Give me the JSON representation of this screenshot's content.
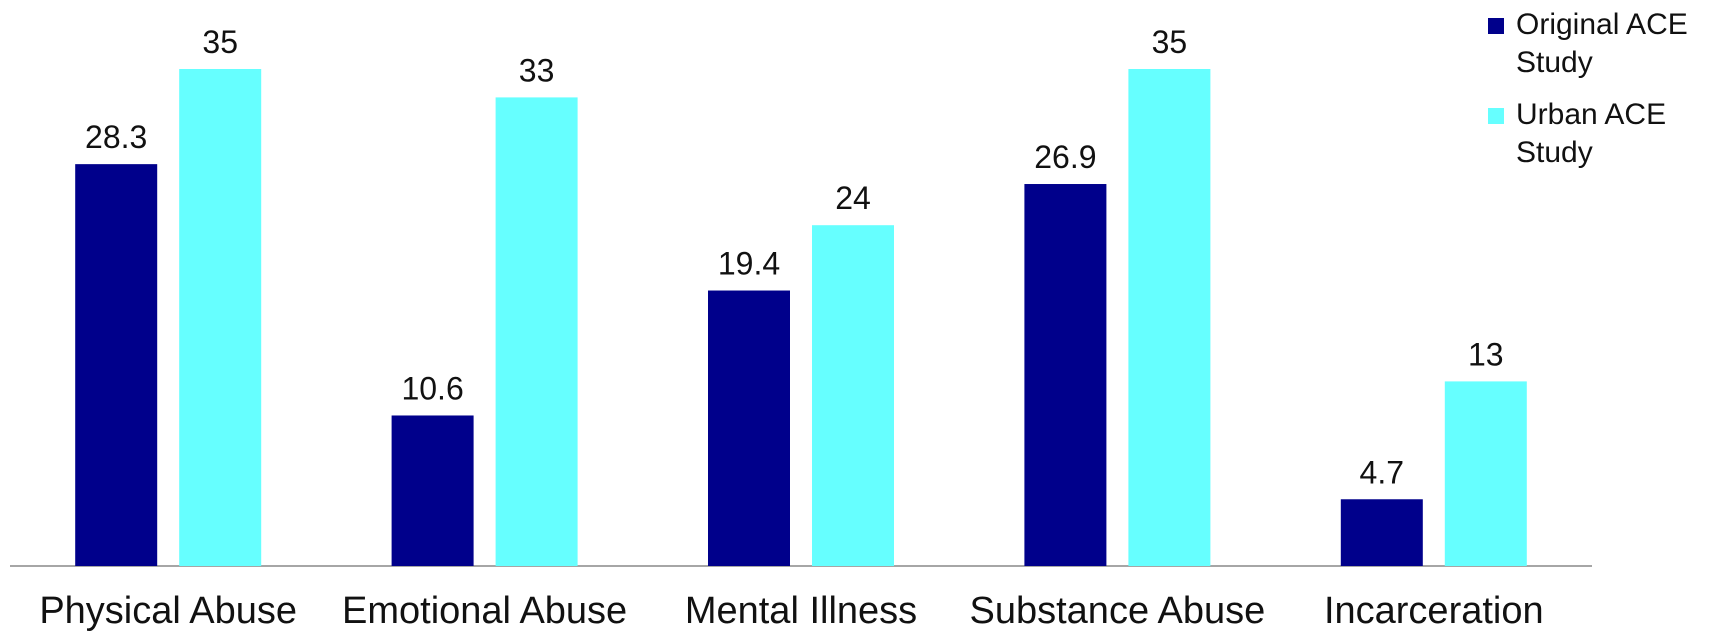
{
  "chart_data": {
    "type": "bar",
    "categories": [
      "Physical Abuse",
      "Emotional Abuse",
      "Mental Illness",
      "Substance Abuse",
      "Incarceration"
    ],
    "series": [
      {
        "name": "Original ACE Study",
        "color": "#00008B",
        "values": [
          28.3,
          10.6,
          19.4,
          26.9,
          4.7
        ],
        "labels": [
          "28.3",
          "10.6",
          "19.4",
          "26.9",
          "4.7"
        ]
      },
      {
        "name": "Urban ACE Study",
        "color": "#66FFFF",
        "values": [
          35,
          33,
          24,
          35,
          13
        ],
        "labels": [
          "35",
          "33",
          "24",
          "35",
          "13"
        ]
      }
    ],
    "ylim": [
      0,
      35
    ],
    "grid": false,
    "legend_position": "top-right"
  }
}
